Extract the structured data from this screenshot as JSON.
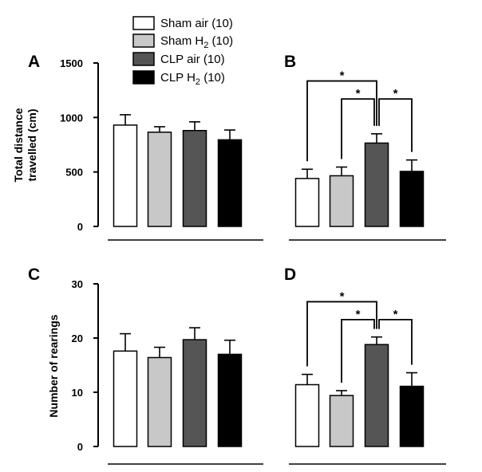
{
  "legend": [
    {
      "label": "Sham air (10)",
      "color": "#ffffff"
    },
    {
      "label": "Sham H₂ (10)",
      "color": "#c8c8c8"
    },
    {
      "label": "CLP air  (10)",
      "color": "#555555"
    },
    {
      "label": "CLP H₂ (10)",
      "color": "#000000"
    }
  ],
  "chart_data": [
    {
      "type": "bar",
      "panel_label": "A",
      "ylabel_lines": [
        "Total distance",
        "travelled (cm)"
      ],
      "ylim": [
        0,
        1500
      ],
      "yticks": [
        "0",
        "500",
        "1000",
        "1500"
      ],
      "categories": [
        "Sham air (10)",
        "Sham H₂ (10)",
        "CLP air  (10)",
        "CLP H₂ (10)"
      ],
      "values": [
        930,
        865,
        880,
        795
      ],
      "errors": [
        95,
        50,
        80,
        90
      ],
      "significance": []
    },
    {
      "type": "bar",
      "panel_label": "B",
      "ylabel_lines": [],
      "ylim": [
        0,
        1500
      ],
      "yticks": [],
      "categories": [
        "Sham air (10)",
        "Sham H₂ (10)",
        "CLP air  (10)",
        "CLP H₂ (10)"
      ],
      "values": [
        440,
        465,
        765,
        505
      ],
      "errors": [
        85,
        80,
        85,
        105
      ],
      "significance": [
        {
          "from": 0,
          "to": 2,
          "label": "*"
        },
        {
          "from": 1,
          "to": 2,
          "label": "*"
        },
        {
          "from": 2,
          "to": 3,
          "label": "*"
        }
      ]
    },
    {
      "type": "bar",
      "panel_label": "C",
      "ylabel_lines": [
        "Number of rearings"
      ],
      "ylim": [
        0,
        30
      ],
      "yticks": [
        "0",
        "10",
        "20",
        "30"
      ],
      "categories": [
        "Sham air (10)",
        "Sham H₂ (10)",
        "CLP air  (10)",
        "CLP H₂ (10)"
      ],
      "values": [
        17.6,
        16.4,
        19.7,
        17.0
      ],
      "errors": [
        3.2,
        1.9,
        2.2,
        2.6
      ],
      "significance": []
    },
    {
      "type": "bar",
      "panel_label": "D",
      "ylabel_lines": [],
      "ylim": [
        0,
        30
      ],
      "yticks": [],
      "categories": [
        "Sham air (10)",
        "Sham H₂ (10)",
        "CLP air  (10)",
        "CLP H₂ (10)"
      ],
      "values": [
        11.4,
        9.4,
        18.8,
        11.1
      ],
      "errors": [
        1.9,
        0.9,
        1.4,
        2.5
      ],
      "significance": [
        {
          "from": 0,
          "to": 2,
          "label": "*"
        },
        {
          "from": 1,
          "to": 2,
          "label": "*"
        },
        {
          "from": 2,
          "to": 3,
          "label": "*"
        }
      ]
    }
  ]
}
